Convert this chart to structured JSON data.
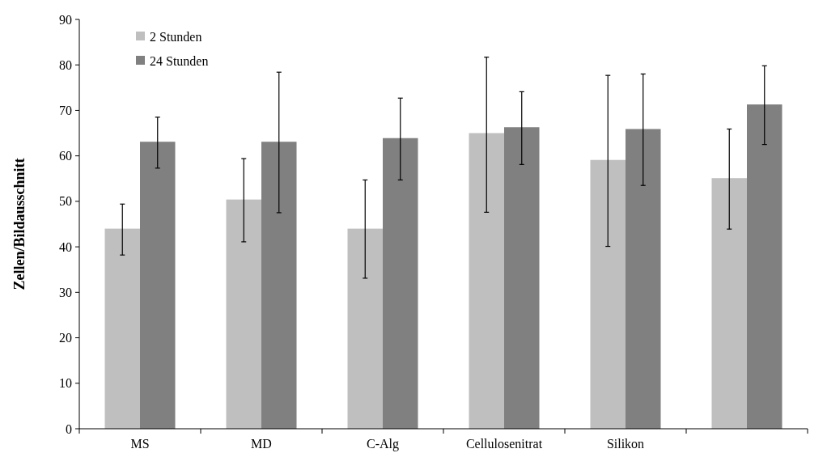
{
  "chart_data": {
    "type": "bar",
    "ylabel": "Zellen/Bildausschnitt",
    "categories": [
      "MS",
      "MD",
      "C-Alg",
      "Cellulosenitrat",
      "Silikon",
      null
    ],
    "series": [
      {
        "name": "2 Stunden",
        "color": "#bfbfbf",
        "values": [
          44.0,
          50.4,
          44.0,
          65.0,
          59.1,
          55.1
        ],
        "errors": [
          [
            38.2,
            49.4
          ],
          [
            41.1,
            59.4
          ],
          [
            33.1,
            54.7
          ],
          [
            47.6,
            81.7
          ],
          [
            40.1,
            77.7
          ],
          [
            43.9,
            65.9
          ]
        ]
      },
      {
        "name": "24 Stunden",
        "color": "#808080",
        "values": [
          63.1,
          63.1,
          63.9,
          66.3,
          65.9,
          71.3
        ],
        "errors": [
          [
            57.3,
            68.5
          ],
          [
            47.5,
            78.4
          ],
          [
            54.7,
            72.7
          ],
          [
            58.1,
            74.1
          ],
          [
            53.5,
            78.0
          ],
          [
            62.5,
            79.8
          ]
        ]
      }
    ],
    "ylim": [
      0,
      90
    ],
    "yticks": [
      0,
      10,
      20,
      30,
      40,
      50,
      60,
      70,
      80,
      90
    ],
    "legend": "top left",
    "grid": false
  }
}
